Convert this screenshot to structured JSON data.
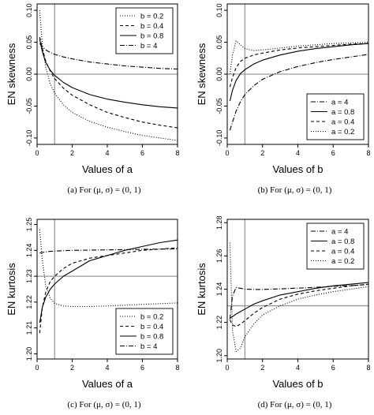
{
  "chart_data": [
    {
      "type": "line",
      "ylabel": "EN skewness",
      "xlabel": "Values of a",
      "caption": "(a) For (μ, σ) = (0, 1)",
      "xlim": [
        0,
        8
      ],
      "ylim": [
        -0.11,
        0.11
      ],
      "xticks": [
        0,
        2,
        4,
        6,
        8
      ],
      "yticks": [
        -0.1,
        -0.05,
        0.0,
        0.05,
        0.1
      ],
      "ytick_labels": [
        "-0.10",
        "-0.05",
        "0.00",
        "0.05",
        "0.10"
      ],
      "hline": 0.0,
      "vline": 1,
      "legend_position": "top-right",
      "x": [
        0.15,
        0.3,
        0.5,
        0.75,
        1.0,
        1.5,
        2,
        3,
        4,
        5,
        6,
        7,
        8
      ],
      "series": [
        {
          "name": "b = 0.2",
          "style": "dotted",
          "values": [
            0.1,
            0.045,
            0.01,
            -0.015,
            -0.03,
            -0.048,
            -0.06,
            -0.074,
            -0.083,
            -0.09,
            -0.096,
            -0.1,
            -0.104
          ]
        },
        {
          "name": "b = 0.4",
          "style": "dashed",
          "values": [
            0.058,
            0.04,
            0.02,
            0.005,
            -0.007,
            -0.022,
            -0.033,
            -0.048,
            -0.06,
            -0.068,
            -0.075,
            -0.08,
            -0.084
          ]
        },
        {
          "name": "b = 0.8",
          "style": "solid",
          "values": [
            0.055,
            0.035,
            0.018,
            0.006,
            -0.002,
            -0.013,
            -0.021,
            -0.032,
            -0.039,
            -0.044,
            -0.048,
            -0.051,
            -0.053
          ]
        },
        {
          "name": "b = 4",
          "style": "dotdash",
          "values": [
            0.048,
            0.043,
            0.038,
            0.034,
            0.031,
            0.027,
            0.024,
            0.019,
            0.016,
            0.013,
            0.011,
            0.009,
            0.008
          ]
        }
      ]
    },
    {
      "type": "line",
      "ylabel": "EN skewness",
      "xlabel": "Values of b",
      "caption": "(b) For (μ, σ) = (0, 1)",
      "xlim": [
        0,
        8
      ],
      "ylim": [
        -0.11,
        0.11
      ],
      "xticks": [
        0,
        2,
        4,
        6,
        8
      ],
      "yticks": [
        -0.1,
        -0.05,
        0.0,
        0.05,
        0.1
      ],
      "ytick_labels": [
        "-0.10",
        "-0.05",
        "0.00",
        "0.05",
        "0.10"
      ],
      "hline": 0.0,
      "vline": 1,
      "legend_position": "bottom-right",
      "x": [
        0.15,
        0.3,
        0.5,
        0.75,
        1.0,
        1.5,
        2,
        3,
        4,
        5,
        6,
        7,
        8
      ],
      "series": [
        {
          "name": "a = 4",
          "style": "dotdash",
          "values": [
            -0.088,
            -0.075,
            -0.058,
            -0.043,
            -0.032,
            -0.018,
            -0.008,
            0.004,
            0.012,
            0.018,
            0.023,
            0.027,
            0.031
          ]
        },
        {
          "name": "a = 0.8",
          "style": "solid",
          "values": [
            -0.042,
            -0.025,
            -0.01,
            0.001,
            0.007,
            0.016,
            0.022,
            0.03,
            0.036,
            0.04,
            0.043,
            0.046,
            0.048
          ]
        },
        {
          "name": "a = 0.4",
          "style": "dashed",
          "values": [
            -0.02,
            -0.005,
            0.01,
            0.02,
            0.025,
            0.03,
            0.033,
            0.038,
            0.041,
            0.043,
            0.045,
            0.047,
            0.048
          ]
        },
        {
          "name": "a = 0.2",
          "style": "dotted",
          "values": [
            0.0,
            0.03,
            0.052,
            0.046,
            0.04,
            0.037,
            0.038,
            0.041,
            0.044,
            0.046,
            0.048,
            0.049,
            0.05
          ]
        }
      ]
    },
    {
      "type": "line",
      "ylabel": "EN kurtosis",
      "xlabel": "Values of a",
      "caption": "(c) For (μ, σ) = (0, 1)",
      "xlim": [
        0,
        8
      ],
      "ylim": [
        1.198,
        1.252
      ],
      "xticks": [
        0,
        2,
        4,
        6,
        8
      ],
      "yticks": [
        1.2,
        1.21,
        1.22,
        1.23,
        1.24,
        1.25
      ],
      "ytick_labels": [
        "1.20",
        "1.21",
        "1.22",
        "1.23",
        "1.24",
        "1.25"
      ],
      "hline": 1.23,
      "vline": 1,
      "legend_position": "bottom-right",
      "x": [
        0.15,
        0.3,
        0.5,
        0.75,
        1.0,
        1.5,
        2,
        3,
        4,
        5,
        6,
        7,
        8
      ],
      "series": [
        {
          "name": "b = 0.2",
          "style": "dotted",
          "values": [
            1.248,
            1.236,
            1.226,
            1.2215,
            1.2195,
            1.2185,
            1.2183,
            1.2183,
            1.2185,
            1.2188,
            1.2191,
            1.2194,
            1.2197
          ]
        },
        {
          "name": "b = 0.4",
          "style": "dashed",
          "values": [
            1.208,
            1.218,
            1.224,
            1.228,
            1.23,
            1.233,
            1.235,
            1.237,
            1.238,
            1.239,
            1.24,
            1.2405,
            1.241
          ]
        },
        {
          "name": "b = 0.8",
          "style": "solid",
          "values": [
            1.212,
            1.218,
            1.222,
            1.225,
            1.227,
            1.23,
            1.232,
            1.236,
            1.238,
            1.24,
            1.2415,
            1.243,
            1.244
          ]
        },
        {
          "name": "b = 4",
          "style": "dotdash",
          "values": [
            1.239,
            1.2392,
            1.2394,
            1.2396,
            1.2397,
            1.2399,
            1.24,
            1.2401,
            1.2402,
            1.2403,
            1.2404,
            1.2405,
            1.2406
          ]
        }
      ]
    },
    {
      "type": "line",
      "ylabel": "EN kurtosis",
      "xlabel": "Values of b",
      "caption": "(d) For (μ, σ) = (0, 1)",
      "xlim": [
        0,
        8
      ],
      "ylim": [
        1.198,
        1.282
      ],
      "xticks": [
        0,
        2,
        4,
        6,
        8
      ],
      "yticks": [
        1.2,
        1.22,
        1.24,
        1.26,
        1.28
      ],
      "ytick_labels": [
        "1.20",
        "1.22",
        "1.24",
        "1.26",
        "1.28"
      ],
      "hline": 1.23,
      "vline": 1,
      "legend_position": "top-right",
      "x": [
        0.15,
        0.3,
        0.5,
        0.75,
        1.0,
        1.5,
        2,
        3,
        4,
        5,
        6,
        7,
        8
      ],
      "series": [
        {
          "name": "a = 4",
          "style": "dotdash",
          "values": [
            1.222,
            1.236,
            1.241,
            1.2405,
            1.24,
            1.2398,
            1.2398,
            1.2402,
            1.2406,
            1.2411,
            1.2417,
            1.2422,
            1.2428
          ]
        },
        {
          "name": "a = 0.8",
          "style": "solid",
          "values": [
            1.2225,
            1.2235,
            1.225,
            1.2265,
            1.228,
            1.231,
            1.233,
            1.2365,
            1.2385,
            1.2405,
            1.242,
            1.243,
            1.244
          ]
        },
        {
          "name": "a = 0.4",
          "style": "dashed",
          "values": [
            1.2215,
            1.2185,
            1.2175,
            1.219,
            1.221,
            1.2255,
            1.229,
            1.234,
            1.237,
            1.239,
            1.2405,
            1.242,
            1.243
          ]
        },
        {
          "name": "a = 0.2",
          "style": "dotted",
          "values": [
            1.268,
            1.215,
            1.2025,
            1.2045,
            1.2115,
            1.219,
            1.2245,
            1.23,
            1.234,
            1.2365,
            1.2385,
            1.24,
            1.2415
          ]
        }
      ]
    }
  ]
}
